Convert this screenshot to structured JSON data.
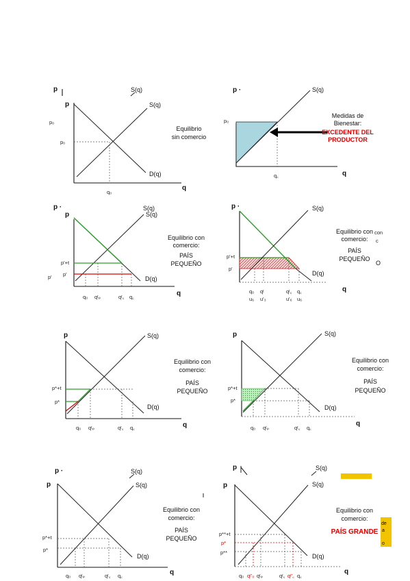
{
  "colors": {
    "surplus_fill": "#a9d6df",
    "red_line": "#e00000",
    "green_line": "#2aa02a",
    "highlight_yellow": "#f2c400"
  },
  "labels": {
    "p": "p",
    "q": "q",
    "p_dot": "p ·",
    "S": "S(q)",
    "D": "D(q)",
    "p0": "p₀",
    "q0": "q₀",
    "pstar": "p*",
    "pstar_t": "p*+t",
    "pstar_t2": "p'+t",
    "pstar2": "p'",
    "pstar_dbl": "p**",
    "pstar_dbl_t": "p**+t",
    "q0_sub": "q₀",
    "qp": "qᵗₚ",
    "qc_t": "qᵗ꜀",
    "qc": "q꜀",
    "qc_text": "q꜀",
    "qp_text": "q꜀",
    "q_s1": "q₀",
    "q_s2": "qᵗ",
    "q_s3": "qᵗ꜀",
    "q_s4": "q꜀",
    "q_u1": "u₆",
    "q_u2": "u'₃",
    "q_u3": "u'₆",
    "q_u4": "u₆",
    "qp_red": "qᵗ'₀",
    "qc_red": "qᵗ'꜀"
  },
  "captions": {
    "eq_no_trade_1": "Equilibrio",
    "eq_no_trade_2": "sin comercio",
    "welfare_1": "Medidas de",
    "welfare_2": "Bienestar:",
    "producer_1": "EXCEDENTE DEL",
    "producer_2": "PRODUCTOR",
    "trade_1": "Equilibrio con",
    "trade_2": "comercio:",
    "small_1": "PAÍS",
    "small_2": "PEQUEÑO",
    "large": "PAÍS GRANDE",
    "frag_con": "con",
    "frag_c": "c",
    "frag_o": "O",
    "frag_de": "de",
    "frag_a": "a",
    "frag_o2": "o"
  }
}
